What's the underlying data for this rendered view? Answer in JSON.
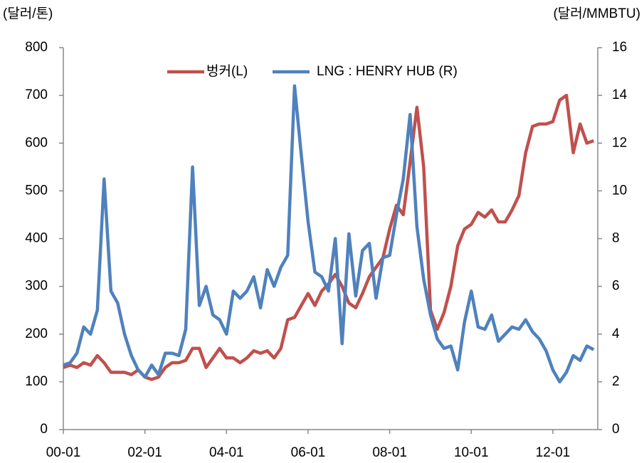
{
  "chart_data": {
    "type": "line",
    "y_label": "(달러/톤)",
    "y2_label": "(달러/MMBTU)",
    "x": [
      2000,
      2000.167,
      2000.333,
      2000.5,
      2000.667,
      2000.833,
      2001,
      2001.167,
      2001.333,
      2001.5,
      2001.667,
      2001.833,
      2002,
      2002.167,
      2002.333,
      2002.5,
      2002.667,
      2002.833,
      2003,
      2003.167,
      2003.333,
      2003.5,
      2003.667,
      2003.833,
      2004,
      2004.167,
      2004.333,
      2004.5,
      2004.667,
      2004.833,
      2005,
      2005.167,
      2005.333,
      2005.5,
      2005.667,
      2005.833,
      2006,
      2006.167,
      2006.333,
      2006.5,
      2006.667,
      2006.833,
      2007,
      2007.167,
      2007.333,
      2007.5,
      2007.667,
      2007.833,
      2008,
      2008.167,
      2008.333,
      2008.5,
      2008.667,
      2008.833,
      2009,
      2009.167,
      2009.333,
      2009.5,
      2009.667,
      2009.833,
      2010,
      2010.167,
      2010.333,
      2010.5,
      2010.667,
      2010.833,
      2011,
      2011.167,
      2011.333,
      2011.5,
      2011.667,
      2011.833,
      2012,
      2012.167,
      2012.333,
      2012.5,
      2012.667,
      2012.833,
      2013
    ],
    "series": [
      {
        "name": "벙커(L)",
        "color": "#c0504d",
        "values": [
          130,
          135,
          130,
          140,
          135,
          155,
          140,
          120,
          120,
          120,
          115,
          125,
          110,
          105,
          110,
          130,
          140,
          140,
          145,
          170,
          170,
          130,
          150,
          170,
          150,
          150,
          140,
          150,
          165,
          160,
          165,
          150,
          170,
          230,
          235,
          260,
          285,
          260,
          290,
          305,
          325,
          300,
          265,
          255,
          285,
          320,
          340,
          360,
          420,
          470,
          450,
          560,
          675,
          550,
          250,
          210,
          245,
          300,
          385,
          420,
          430,
          455,
          445,
          460,
          435,
          435,
          460,
          490,
          580,
          635,
          640,
          640,
          645,
          690,
          700,
          580,
          640,
          600,
          605
        ]
      },
      {
        "name": "LNG : HENRY HUB (R)",
        "color": "#4f81bd",
        "axis": "y2",
        "values": [
          2.7,
          2.8,
          3.2,
          4.3,
          4.0,
          5.0,
          10.5,
          5.8,
          5.3,
          4.0,
          3.1,
          2.5,
          2.2,
          2.7,
          2.3,
          3.2,
          3.2,
          3.1,
          4.2,
          11.0,
          5.2,
          6.0,
          4.8,
          4.6,
          4.0,
          5.8,
          5.5,
          5.8,
          6.4,
          5.1,
          6.7,
          6.0,
          6.8,
          7.3,
          14.4,
          11.5,
          8.7,
          6.6,
          6.4,
          5.8,
          8.0,
          3.6,
          8.2,
          5.6,
          7.5,
          7.8,
          5.5,
          7.2,
          7.3,
          9.0,
          10.5,
          13.2,
          8.5,
          6.3,
          4.8,
          3.8,
          3.4,
          3.5,
          2.5,
          4.5,
          5.8,
          4.3,
          4.2,
          4.8,
          3.7,
          4.0,
          4.3,
          4.2,
          4.6,
          4.1,
          3.8,
          3.3,
          2.5,
          2.0,
          2.4,
          3.1,
          2.9,
          3.5,
          3.35
        ]
      }
    ],
    "xlim": [
      2000,
      2013.1
    ],
    "xticks": [
      {
        "value": 2000,
        "label": "00-01"
      },
      {
        "value": 2002,
        "label": "02-01"
      },
      {
        "value": 2004,
        "label": "04-01"
      },
      {
        "value": 2006,
        "label": "06-01"
      },
      {
        "value": 2008,
        "label": "08-01"
      },
      {
        "value": 2010,
        "label": "10-01"
      },
      {
        "value": 2012,
        "label": "12-01"
      }
    ],
    "ylim": [
      0,
      800
    ],
    "yticks": [
      0,
      100,
      200,
      300,
      400,
      500,
      600,
      700,
      800
    ],
    "y2lim": [
      0,
      16
    ],
    "y2ticks": [
      0,
      2,
      4,
      6,
      8,
      10,
      12,
      14,
      16
    ],
    "legend": "top"
  }
}
